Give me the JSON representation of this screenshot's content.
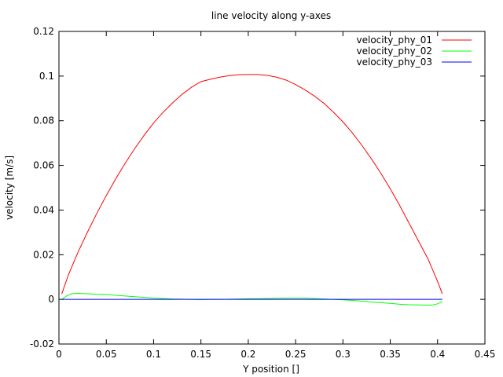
{
  "chart_data": {
    "type": "line",
    "title": "line velocity along y-axes",
    "xlabel": "Y position []",
    "ylabel": "velocity [m/s]",
    "xlim": [
      0,
      0.45
    ],
    "ylim": [
      -0.02,
      0.12
    ],
    "x_ticks": [
      0,
      0.05,
      0.1,
      0.15,
      0.2,
      0.25,
      0.3,
      0.35,
      0.4,
      0.45
    ],
    "x_tick_labels": [
      "0",
      "0.05",
      "0.1",
      "0.15",
      "0.2",
      "0.25",
      "0.3",
      "0.35",
      "0.4",
      "0.45"
    ],
    "y_ticks": [
      -0.02,
      0,
      0.02,
      0.04,
      0.06,
      0.08,
      0.1,
      0.12
    ],
    "y_tick_labels": [
      "-0.02",
      "0",
      "0.02",
      "0.04",
      "0.06",
      "0.08",
      "0.1",
      "0.12"
    ],
    "grid": false,
    "legend_position": "top-right",
    "series": [
      {
        "name": "velocity_phy_01",
        "color": "#ff0000",
        "x": [
          0.003,
          0.01,
          0.02,
          0.03,
          0.04,
          0.05,
          0.06,
          0.07,
          0.08,
          0.09,
          0.1,
          0.11,
          0.12,
          0.13,
          0.14,
          0.15,
          0.16,
          0.17,
          0.18,
          0.19,
          0.2,
          0.205,
          0.21,
          0.22,
          0.23,
          0.24,
          0.25,
          0.26,
          0.27,
          0.28,
          0.29,
          0.3,
          0.31,
          0.32,
          0.33,
          0.34,
          0.35,
          0.36,
          0.37,
          0.38,
          0.39,
          0.4,
          0.405
        ],
        "y": [
          0.0025,
          0.011,
          0.021,
          0.03,
          0.0385,
          0.0465,
          0.054,
          0.061,
          0.0675,
          0.0735,
          0.079,
          0.0838,
          0.088,
          0.0918,
          0.095,
          0.0975,
          0.0986,
          0.0995,
          0.1002,
          0.1006,
          0.1007,
          0.1007,
          0.1007,
          0.1003,
          0.0995,
          0.0982,
          0.0962,
          0.0938,
          0.091,
          0.0878,
          0.0838,
          0.0795,
          0.0745,
          0.069,
          0.063,
          0.0565,
          0.0495,
          0.042,
          0.034,
          0.026,
          0.018,
          0.008,
          0.0025
        ]
      },
      {
        "name": "velocity_phy_02",
        "color": "#00ff00",
        "x": [
          0.003,
          0.008,
          0.013,
          0.02,
          0.03,
          0.04,
          0.05,
          0.06,
          0.07,
          0.08,
          0.09,
          0.1,
          0.11,
          0.12,
          0.13,
          0.14,
          0.15,
          0.16,
          0.17,
          0.18,
          0.19,
          0.2,
          0.21,
          0.22,
          0.23,
          0.24,
          0.25,
          0.26,
          0.27,
          0.28,
          0.29,
          0.3,
          0.31,
          0.32,
          0.33,
          0.34,
          0.35,
          0.36,
          0.37,
          0.38,
          0.39,
          0.395,
          0.4,
          0.405
        ],
        "y": [
          0.0,
          0.0015,
          0.0025,
          0.0027,
          0.0025,
          0.0023,
          0.0022,
          0.0018,
          0.0015,
          0.0012,
          0.0009,
          0.0006,
          0.0004,
          0.0002,
          0.0001,
          0.0,
          -0.0001,
          0.0,
          0.0,
          0.0001,
          0.0002,
          0.0003,
          0.0003,
          0.0004,
          0.0005,
          0.0006,
          0.0006,
          0.0006,
          0.0004,
          0.0002,
          0.0,
          -0.0002,
          -0.0005,
          -0.0008,
          -0.0012,
          -0.0015,
          -0.0018,
          -0.0022,
          -0.0024,
          -0.0025,
          -0.0026,
          -0.0025,
          -0.002,
          -0.001
        ]
      },
      {
        "name": "velocity_phy_03",
        "color": "#0000ff",
        "x": [
          0.003,
          0.1,
          0.2,
          0.3,
          0.405
        ],
        "y": [
          0.0,
          0.0,
          0.0,
          0.0,
          0.0
        ]
      }
    ]
  }
}
